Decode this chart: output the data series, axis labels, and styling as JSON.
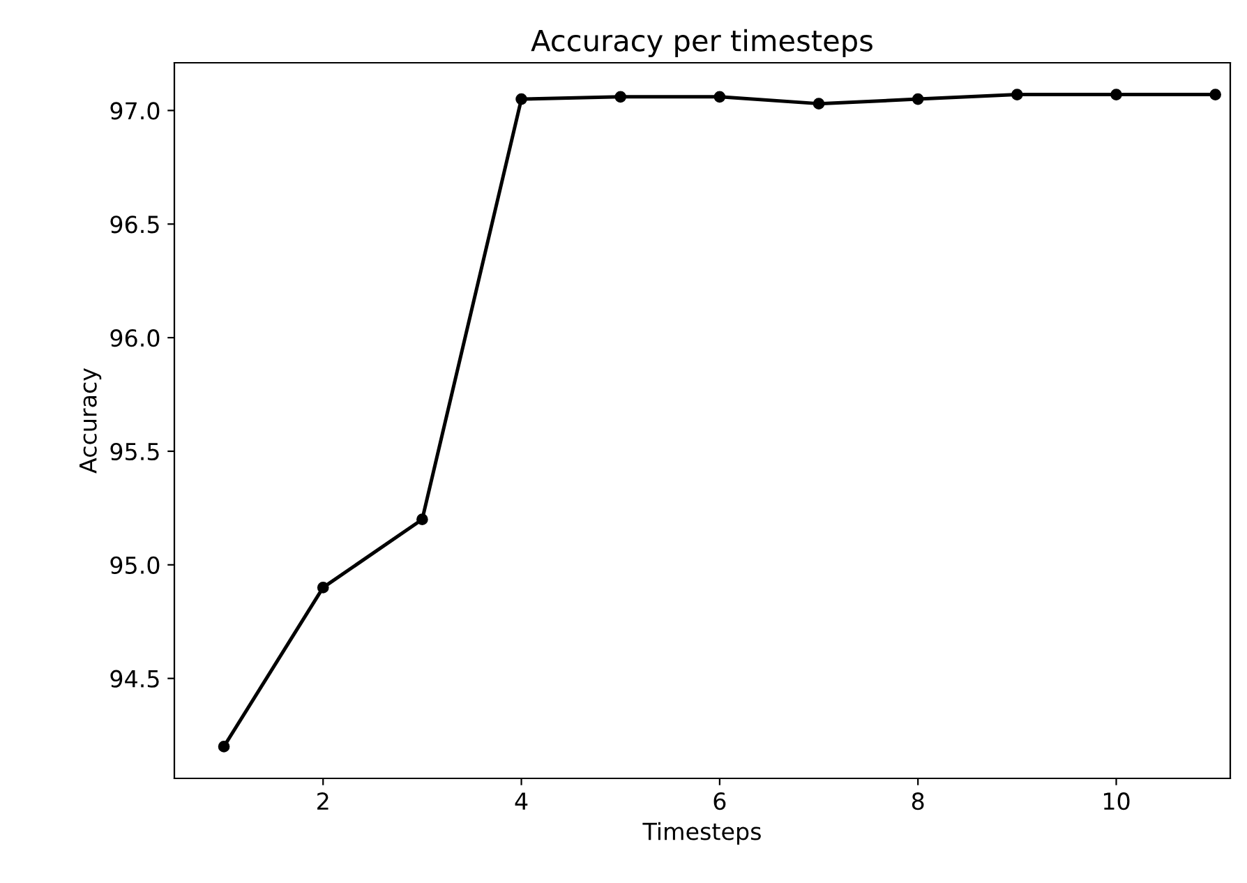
{
  "chart_data": {
    "type": "line",
    "title": "Accuracy per timesteps",
    "xlabel": "Timesteps",
    "ylabel": "Accuracy",
    "x": [
      1,
      2,
      3,
      4,
      5,
      6,
      7,
      8,
      9,
      10,
      11
    ],
    "series": [
      {
        "color": "#000000",
        "values": [
          94.2,
          94.9,
          95.2,
          97.05,
          97.06,
          97.06,
          97.03,
          97.05,
          97.07,
          97.07,
          97.07
        ]
      }
    ],
    "xlim": [
      0.5,
      11.15
    ],
    "xticks": [
      2,
      4,
      6,
      8,
      10
    ],
    "ylim": [
      94.06,
      97.21
    ],
    "yticks": [
      94.5,
      {
        "value": 95,
        "label": "95.0"
      },
      95.5,
      {
        "value": 96,
        "label": "96.0"
      },
      96.5,
      {
        "value": 97,
        "label": "97.0"
      }
    ],
    "marker": "circle",
    "line_style": "solid",
    "grid": false,
    "legend": false
  }
}
